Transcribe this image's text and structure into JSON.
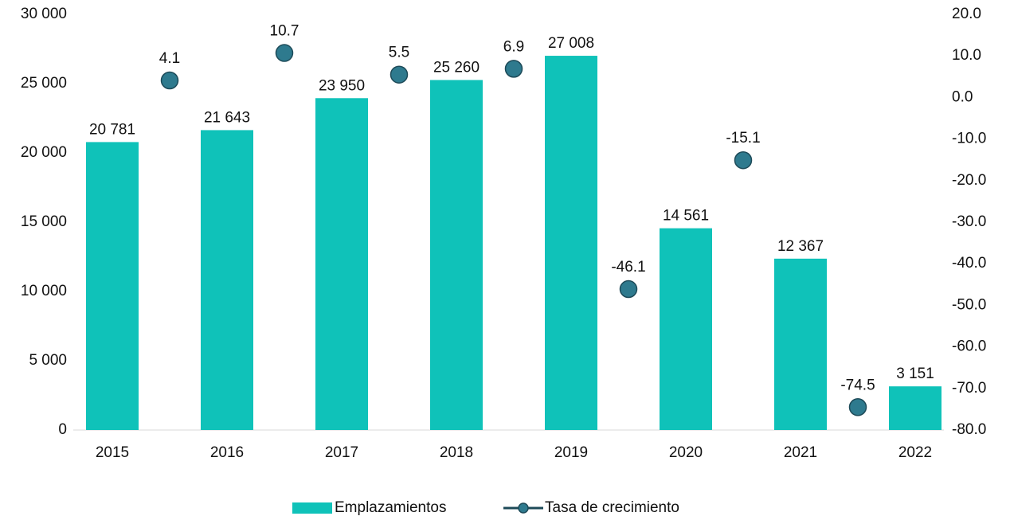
{
  "chart_data": {
    "type": "bar-line",
    "categories": [
      "2015",
      "2016",
      "2017",
      "2018",
      "2019",
      "2020",
      "2021",
      "2022"
    ],
    "series": [
      {
        "name": "Emplazamientos",
        "type": "bar",
        "color": "#0fc2b9",
        "values": [
          20781,
          21643,
          23950,
          25260,
          27008,
          14561,
          12367,
          3151
        ],
        "value_labels": [
          "20 781",
          "21 643",
          "23 950",
          "25 260",
          "27 008",
          "14 561",
          "12 367",
          "3 151"
        ]
      },
      {
        "name": "Tasa de crecimiento",
        "type": "line",
        "axis": "y2",
        "color": "#2e7a8e",
        "values": [
          null,
          4.1,
          10.7,
          5.5,
          6.9,
          -46.1,
          -15.1,
          -74.5
        ]
      }
    ],
    "ylim": [
      0,
      30000
    ],
    "yticks": [
      0,
      {
        "value": 5000,
        "label": "5 000"
      },
      {
        "value": 10000,
        "label": "10 000"
      },
      {
        "value": 15000,
        "label": "15 000"
      },
      {
        "value": 20000,
        "label": "20 000"
      },
      {
        "value": 25000,
        "label": "25 000"
      },
      {
        "value": 30000,
        "label": "30 000"
      }
    ],
    "y2lim": [
      -80,
      20
    ],
    "y2ticks": [
      {
        "value": -80,
        "label": "-80.0"
      },
      {
        "value": -70,
        "label": "-70.0"
      },
      {
        "value": -60,
        "label": "-60.0"
      },
      {
        "value": -50,
        "label": "-50.0"
      },
      {
        "value": -40,
        "label": "-40.0"
      },
      {
        "value": -30,
        "label": "-30.0"
      },
      {
        "value": -20,
        "label": "-20.0"
      },
      {
        "value": -10,
        "label": "-10.0"
      },
      {
        "value": 0,
        "label": "0.0"
      },
      {
        "value": 10,
        "label": "10.0"
      },
      {
        "value": 20,
        "label": "20.0"
      }
    ],
    "legend": "bottom",
    "grid": false
  }
}
